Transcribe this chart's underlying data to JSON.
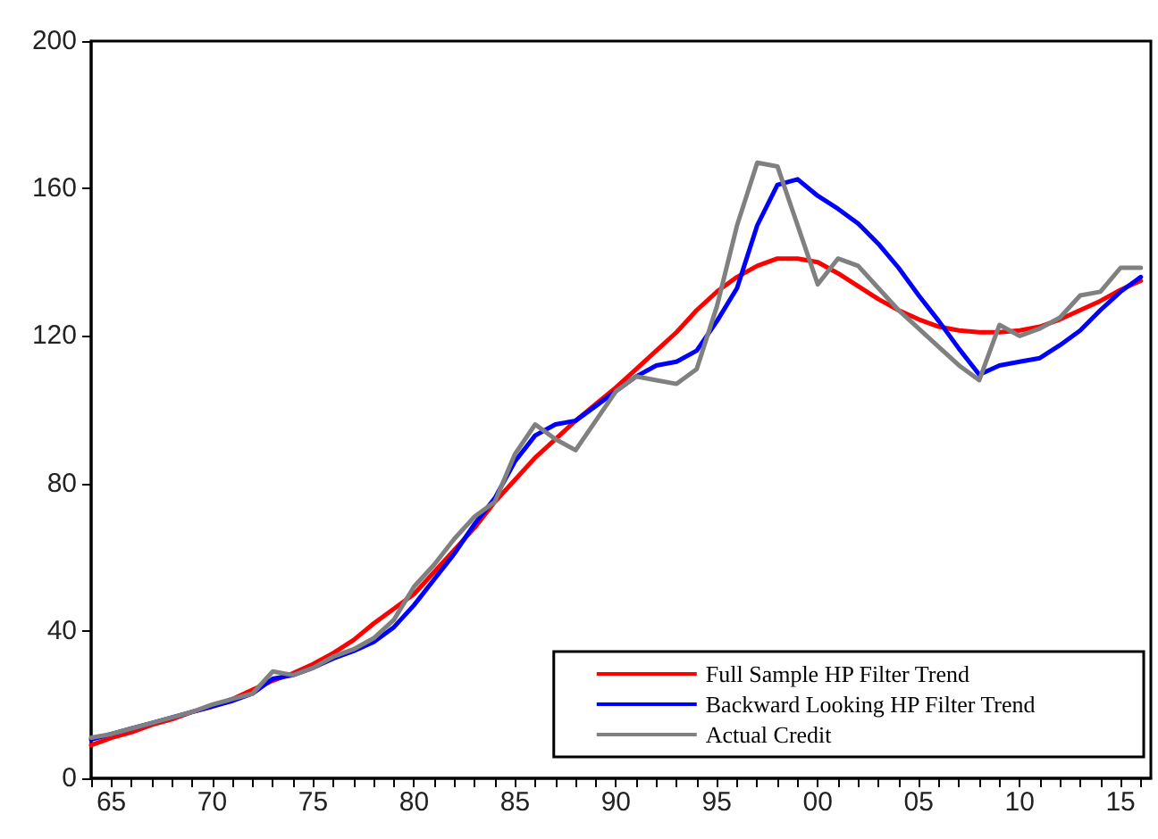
{
  "chart_data": {
    "type": "line",
    "x": [
      1964,
      1965,
      1966,
      1967,
      1968,
      1969,
      1970,
      1971,
      1972,
      1973,
      1974,
      1975,
      1976,
      1977,
      1978,
      1979,
      1980,
      1981,
      1982,
      1983,
      1984,
      1985,
      1986,
      1987,
      1988,
      1989,
      1990,
      1991,
      1992,
      1993,
      1994,
      1995,
      1996,
      1997,
      1998,
      1999,
      2000,
      2001,
      2002,
      2003,
      2004,
      2005,
      2006,
      2007,
      2008,
      2009,
      2010,
      2011,
      2012,
      2013,
      2014,
      2015,
      2016
    ],
    "series": [
      {
        "name": "Full Sample HP Filter Trend",
        "color": "#ff0000",
        "values": [
          9,
          11,
          12.5,
          14.5,
          16,
          18,
          19.5,
          21.5,
          24,
          26.5,
          28.5,
          31,
          34,
          37.5,
          42,
          46,
          50,
          56,
          62,
          68,
          75,
          81,
          87,
          92,
          97,
          101.5,
          106,
          111,
          116,
          121,
          127,
          132,
          136,
          139,
          141,
          141,
          140,
          137,
          133.5,
          130,
          127,
          124.5,
          122.5,
          121.5,
          121,
          121,
          121.5,
          122.5,
          124.5,
          127,
          129.5,
          132.5,
          135
        ]
      },
      {
        "name": "Backward Looking HP Filter Trend",
        "color": "#0000ff",
        "values": [
          10.5,
          12,
          13.5,
          15,
          16.5,
          18,
          19.5,
          21,
          23,
          27,
          28,
          30,
          32.5,
          34.5,
          37,
          41,
          47,
          54,
          61,
          69,
          76,
          86,
          93,
          96,
          97,
          101,
          105,
          109,
          112,
          113,
          116,
          124,
          133,
          150,
          161,
          162.5,
          158,
          154.5,
          150.5,
          145,
          138.5,
          131,
          124,
          116.5,
          109.5,
          112,
          113,
          114,
          117.5,
          121.5,
          127,
          132,
          136
        ]
      },
      {
        "name": "Actual Credit",
        "color": "#808080",
        "values": [
          11,
          12,
          13.5,
          15,
          16.5,
          18,
          20,
          21.5,
          23,
          29,
          28,
          30,
          33,
          35,
          38,
          43,
          52,
          58,
          65,
          71,
          75,
          88,
          96,
          92,
          89,
          97,
          105,
          109,
          108,
          107,
          111,
          128,
          150,
          167,
          166,
          150,
          134,
          141,
          139,
          133,
          127,
          122,
          117,
          112,
          108,
          123,
          120,
          122,
          125,
          131,
          132,
          138.5,
          138.5
        ]
      }
    ],
    "xlim": [
      1964,
      2016.5
    ],
    "xticks": [
      {
        "value": 1964,
        "label": null
      },
      {
        "value": 1965,
        "label": "65"
      },
      {
        "value": 1966,
        "label": null
      },
      {
        "value": 1967,
        "label": null
      },
      {
        "value": 1968,
        "label": null
      },
      {
        "value": 1969,
        "label": null
      },
      {
        "value": 1970,
        "label": "70"
      },
      {
        "value": 1971,
        "label": null
      },
      {
        "value": 1972,
        "label": null
      },
      {
        "value": 1973,
        "label": null
      },
      {
        "value": 1974,
        "label": null
      },
      {
        "value": 1975,
        "label": "75"
      },
      {
        "value": 1976,
        "label": null
      },
      {
        "value": 1977,
        "label": null
      },
      {
        "value": 1978,
        "label": null
      },
      {
        "value": 1979,
        "label": null
      },
      {
        "value": 1980,
        "label": "80"
      },
      {
        "value": 1981,
        "label": null
      },
      {
        "value": 1982,
        "label": null
      },
      {
        "value": 1983,
        "label": null
      },
      {
        "value": 1984,
        "label": null
      },
      {
        "value": 1985,
        "label": "85"
      },
      {
        "value": 1986,
        "label": null
      },
      {
        "value": 1987,
        "label": null
      },
      {
        "value": 1988,
        "label": null
      },
      {
        "value": 1989,
        "label": null
      },
      {
        "value": 1990,
        "label": "90"
      },
      {
        "value": 1991,
        "label": null
      },
      {
        "value": 1992,
        "label": null
      },
      {
        "value": 1993,
        "label": null
      },
      {
        "value": 1994,
        "label": null
      },
      {
        "value": 1995,
        "label": "95"
      },
      {
        "value": 1996,
        "label": null
      },
      {
        "value": 1997,
        "label": null
      },
      {
        "value": 1998,
        "label": null
      },
      {
        "value": 1999,
        "label": null
      },
      {
        "value": 2000,
        "label": "00"
      },
      {
        "value": 2001,
        "label": null
      },
      {
        "value": 2002,
        "label": null
      },
      {
        "value": 2003,
        "label": null
      },
      {
        "value": 2004,
        "label": null
      },
      {
        "value": 2005,
        "label": "05"
      },
      {
        "value": 2006,
        "label": null
      },
      {
        "value": 2007,
        "label": null
      },
      {
        "value": 2008,
        "label": null
      },
      {
        "value": 2009,
        "label": null
      },
      {
        "value": 2010,
        "label": "10"
      },
      {
        "value": 2011,
        "label": null
      },
      {
        "value": 2012,
        "label": null
      },
      {
        "value": 2013,
        "label": null
      },
      {
        "value": 2014,
        "label": null
      },
      {
        "value": 2015,
        "label": "15"
      },
      {
        "value": 2016,
        "label": null
      }
    ],
    "ylim": [
      0,
      200
    ],
    "yticks": [
      0,
      40,
      80,
      120,
      160,
      200
    ],
    "grid": false,
    "legend": "bottom right",
    "marker": "none",
    "line_style": "solid"
  }
}
